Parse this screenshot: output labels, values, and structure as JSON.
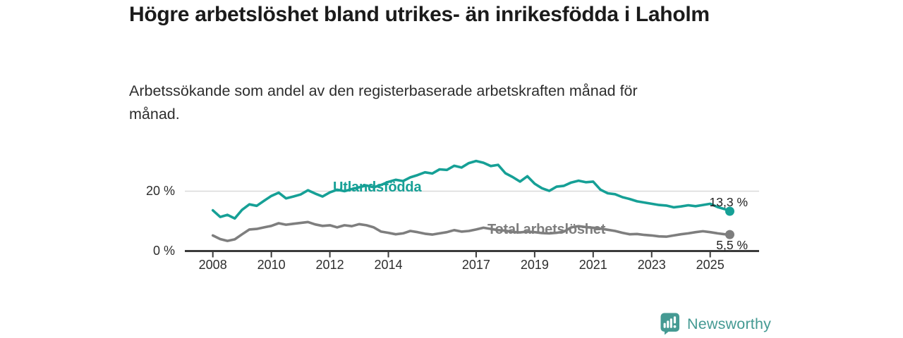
{
  "chart_data": {
    "type": "line",
    "title": "Högre arbetslöshet bland utrikes- än inrikesfödda i Laholm",
    "subtitle": "Arbetssökande som andel av den registerbaserade arbetskraften månad för månad.",
    "unit": "%",
    "legend_position": "inline-labels-on-lines",
    "grid": "single-horizontal-gridline-at-20",
    "x": {
      "ticks": [
        2008,
        2010,
        2012,
        2014,
        2017,
        2019,
        2021,
        2023,
        2025
      ],
      "tick_labels": [
        "2008",
        "2010",
        "2012",
        "2014",
        "2017",
        "2019",
        "2021",
        "2023",
        "2025"
      ],
      "range": [
        2008,
        2025.67
      ]
    },
    "y": {
      "ticks": [
        {
          "value": 20,
          "label": "20 %"
        },
        {
          "value": 0,
          "label": "0 %"
        }
      ],
      "grid_values": [
        20
      ],
      "lim": [
        0,
        32
      ]
    },
    "series": [
      {
        "name": "Utlandsfödda",
        "color": "#16a096",
        "end_label": "13,3 %",
        "end_value": 13.3,
        "points": [
          [
            2008.0,
            13.6
          ],
          [
            2008.25,
            11.4
          ],
          [
            2008.5,
            12.1
          ],
          [
            2008.75,
            10.9
          ],
          [
            2009.0,
            13.8
          ],
          [
            2009.25,
            15.6
          ],
          [
            2009.5,
            15.1
          ],
          [
            2009.75,
            16.8
          ],
          [
            2010.0,
            18.4
          ],
          [
            2010.25,
            19.5
          ],
          [
            2010.5,
            17.6
          ],
          [
            2010.75,
            18.2
          ],
          [
            2011.0,
            18.9
          ],
          [
            2011.25,
            20.3
          ],
          [
            2011.5,
            19.2
          ],
          [
            2011.75,
            18.2
          ],
          [
            2012.0,
            19.6
          ],
          [
            2012.25,
            20.5
          ],
          [
            2012.5,
            20.0
          ],
          [
            2012.75,
            20.7
          ],
          [
            2013.0,
            21.3
          ],
          [
            2013.25,
            21.9
          ],
          [
            2013.5,
            21.3
          ],
          [
            2013.75,
            22.1
          ],
          [
            2014.0,
            23.1
          ],
          [
            2014.25,
            23.8
          ],
          [
            2014.5,
            23.4
          ],
          [
            2014.75,
            24.6
          ],
          [
            2015.0,
            25.4
          ],
          [
            2015.25,
            26.3
          ],
          [
            2015.5,
            25.9
          ],
          [
            2015.75,
            27.3
          ],
          [
            2016.0,
            27.1
          ],
          [
            2016.25,
            28.5
          ],
          [
            2016.5,
            27.9
          ],
          [
            2016.75,
            29.4
          ],
          [
            2017.0,
            30.1
          ],
          [
            2017.25,
            29.5
          ],
          [
            2017.5,
            28.4
          ],
          [
            2017.75,
            28.8
          ],
          [
            2018.0,
            26.0
          ],
          [
            2018.25,
            24.7
          ],
          [
            2018.5,
            23.2
          ],
          [
            2018.75,
            25.0
          ],
          [
            2019.0,
            22.5
          ],
          [
            2019.25,
            21.0
          ],
          [
            2019.5,
            20.1
          ],
          [
            2019.75,
            21.5
          ],
          [
            2020.0,
            21.8
          ],
          [
            2020.25,
            22.9
          ],
          [
            2020.5,
            23.5
          ],
          [
            2020.75,
            23.0
          ],
          [
            2021.0,
            23.2
          ],
          [
            2021.25,
            20.5
          ],
          [
            2021.5,
            19.3
          ],
          [
            2021.75,
            19.0
          ],
          [
            2022.0,
            18.0
          ],
          [
            2022.25,
            17.4
          ],
          [
            2022.5,
            16.6
          ],
          [
            2022.75,
            16.2
          ],
          [
            2023.0,
            15.8
          ],
          [
            2023.25,
            15.4
          ],
          [
            2023.5,
            15.2
          ],
          [
            2023.75,
            14.6
          ],
          [
            2024.0,
            14.9
          ],
          [
            2024.25,
            15.3
          ],
          [
            2024.5,
            15.0
          ],
          [
            2024.75,
            15.4
          ],
          [
            2025.0,
            15.8
          ],
          [
            2025.25,
            14.7
          ],
          [
            2025.5,
            14.0
          ],
          [
            2025.67,
            13.3
          ]
        ]
      },
      {
        "name": "Total arbetslöshet",
        "color": "#7e7e7e",
        "end_label": "5,5 %",
        "end_value": 5.5,
        "points": [
          [
            2008.0,
            5.2
          ],
          [
            2008.25,
            4.0
          ],
          [
            2008.5,
            3.4
          ],
          [
            2008.75,
            3.9
          ],
          [
            2009.0,
            5.6
          ],
          [
            2009.25,
            7.2
          ],
          [
            2009.5,
            7.4
          ],
          [
            2009.75,
            7.9
          ],
          [
            2010.0,
            8.4
          ],
          [
            2010.25,
            9.3
          ],
          [
            2010.5,
            8.8
          ],
          [
            2010.75,
            9.1
          ],
          [
            2011.0,
            9.4
          ],
          [
            2011.25,
            9.7
          ],
          [
            2011.5,
            8.9
          ],
          [
            2011.75,
            8.4
          ],
          [
            2012.0,
            8.6
          ],
          [
            2012.25,
            7.9
          ],
          [
            2012.5,
            8.6
          ],
          [
            2012.75,
            8.3
          ],
          [
            2013.0,
            9.0
          ],
          [
            2013.25,
            8.6
          ],
          [
            2013.5,
            7.9
          ],
          [
            2013.75,
            6.5
          ],
          [
            2014.0,
            6.1
          ],
          [
            2014.25,
            5.6
          ],
          [
            2014.5,
            5.9
          ],
          [
            2014.75,
            6.7
          ],
          [
            2015.0,
            6.3
          ],
          [
            2015.25,
            5.8
          ],
          [
            2015.5,
            5.5
          ],
          [
            2015.75,
            5.9
          ],
          [
            2016.0,
            6.3
          ],
          [
            2016.25,
            7.0
          ],
          [
            2016.5,
            6.5
          ],
          [
            2016.75,
            6.7
          ],
          [
            2017.0,
            7.2
          ],
          [
            2017.25,
            7.8
          ],
          [
            2017.5,
            7.4
          ],
          [
            2017.75,
            7.0
          ],
          [
            2018.0,
            6.8
          ],
          [
            2018.25,
            6.4
          ],
          [
            2018.5,
            6.2
          ],
          [
            2018.75,
            6.5
          ],
          [
            2019.0,
            6.3
          ],
          [
            2019.25,
            6.0
          ],
          [
            2019.5,
            5.9
          ],
          [
            2019.75,
            6.1
          ],
          [
            2020.0,
            6.5
          ],
          [
            2020.25,
            7.9
          ],
          [
            2020.5,
            8.3
          ],
          [
            2020.75,
            8.0
          ],
          [
            2021.0,
            7.8
          ],
          [
            2021.25,
            7.5
          ],
          [
            2021.5,
            7.1
          ],
          [
            2021.75,
            6.7
          ],
          [
            2022.0,
            6.1
          ],
          [
            2022.25,
            5.6
          ],
          [
            2022.5,
            5.7
          ],
          [
            2022.75,
            5.4
          ],
          [
            2023.0,
            5.2
          ],
          [
            2023.25,
            4.9
          ],
          [
            2023.5,
            4.8
          ],
          [
            2023.75,
            5.2
          ],
          [
            2024.0,
            5.6
          ],
          [
            2024.25,
            5.9
          ],
          [
            2024.5,
            6.3
          ],
          [
            2024.75,
            6.6
          ],
          [
            2025.0,
            6.3
          ],
          [
            2025.25,
            5.9
          ],
          [
            2025.5,
            5.6
          ],
          [
            2025.67,
            5.5
          ]
        ]
      }
    ]
  },
  "footer": {
    "brand": "Newsworthy",
    "brand_color": "#459a93",
    "logo_icon": "newsworthy-speech-bubble-bar-chart-icon"
  },
  "colors": {
    "accent_teal": "#16a096",
    "series_gray": "#7e7e7e",
    "axis": "#3a3a3a",
    "gridline": "#d9d9d9",
    "title_text": "#1b1b1b"
  }
}
